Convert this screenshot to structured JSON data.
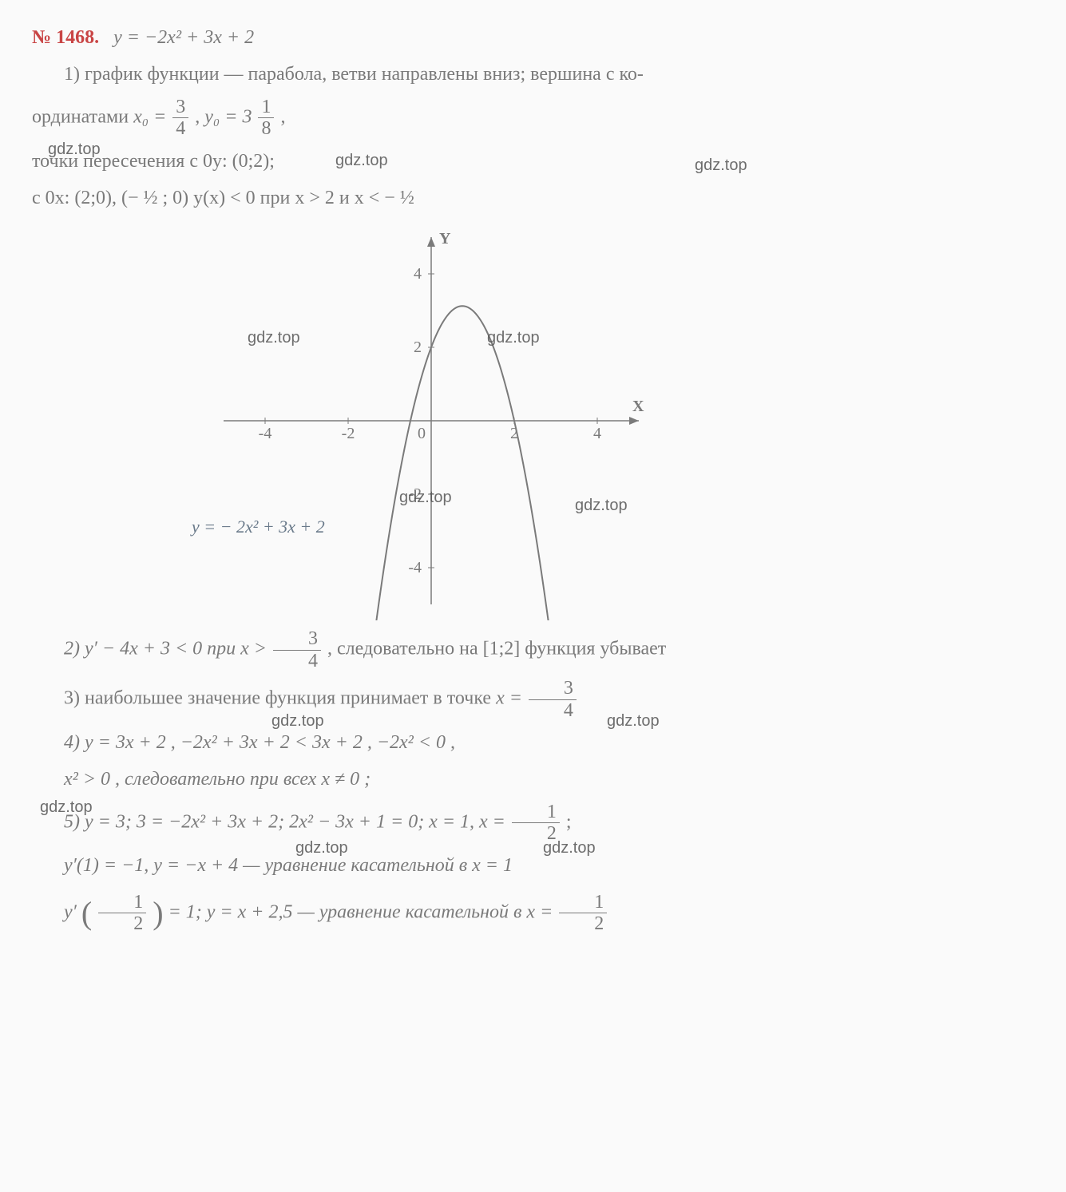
{
  "problem": {
    "number": "№ 1468.",
    "equation_lhs": "y",
    "equation_rhs": "= −2x² + 3x + 2"
  },
  "part1": {
    "text_a": "1) график функции — парабола, ветви направлены вниз; вершина с ко-",
    "text_b_prefix": "ординатами ",
    "x0_var": "x₀ =",
    "x0_num": "3",
    "x0_den": "4",
    "sep": ", ",
    "y0_var": "y₀ = 3",
    "y0_num": "1",
    "y0_den": "8",
    "tail": ",",
    "line_c": "точки пересечения с 0y: (0;2);",
    "line_d": "с 0x: (2;0), (− ½ ; 0) y(x) < 0 при x > 2 и x < − ½"
  },
  "chart": {
    "type": "parabola",
    "xlim": [
      -5,
      5
    ],
    "ylim": [
      -5,
      5
    ],
    "xticks": [
      -4,
      -2,
      0,
      2,
      4
    ],
    "yticks": [
      -4,
      -2,
      2,
      4
    ],
    "axis_labels": {
      "x": "X",
      "y": "Y"
    },
    "curve": {
      "a": -2,
      "b": 3,
      "c": 2,
      "color": "#7a7a7a",
      "width": 2
    },
    "plot_range": [
      -1.4,
      2.9
    ],
    "handwritten": "y = − 2x² + 3x + 2",
    "background": "#fafafa",
    "axis_color": "#7a7a7a",
    "font_size": 20
  },
  "part2": {
    "prefix": "2) y′ − 4x + 3 < 0 при ",
    "xvar": "x >",
    "num": "3",
    "den": "4",
    "suffix": " , следовательно на [1;2] функция убывает"
  },
  "part3": {
    "prefix": "3) наибольшее значение функция принимает в точке ",
    "xvar": "x =",
    "num": "3",
    "den": "4"
  },
  "part4": {
    "line_a": "4)  y = 3x + 2 ,  −2x² + 3x + 2 < 3x + 2 ,  −2x² < 0 ,",
    "line_b": "x² > 0 , следовательно при всех x ≠ 0 ;"
  },
  "part5": {
    "line_a_prefix": "5)  y = 3;  3 = −2x² + 3x + 2;  2x² − 3x + 1 = 0;  x = 1, x =",
    "half_num": "1",
    "half_den": "2",
    "semicolon": ";",
    "line_b": "y′(1) = −1,   y = −x + 4 — уравнение касательной в x = 1",
    "line_c_a": "y′",
    "line_c_bnum": "1",
    "line_c_bden": "2",
    "line_c_mid": "= 1;   y = x + 2,5 — уравнение касательной в ",
    "line_c_xvar": "x =",
    "line_c_num": "1",
    "line_c_den": "2"
  },
  "watermarks": {
    "w1": "gdz.top",
    "w2": "gdz.top",
    "w3": "gdz.top",
    "w4": "gdz.top",
    "w5": "gdz.top",
    "w6": "gdz.top",
    "w7": "gdz.top",
    "w8": "gdz.top",
    "w9": "gdz.top",
    "w10": "gdz.top",
    "w11": "gdz.top",
    "w12": "gdz.top"
  }
}
